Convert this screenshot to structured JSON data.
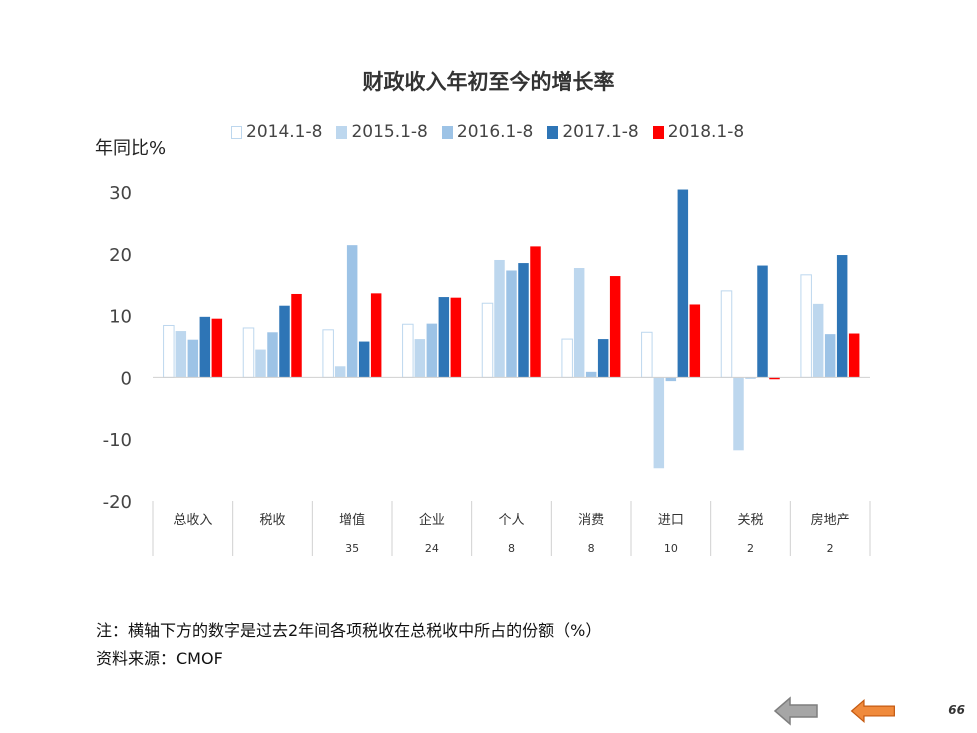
{
  "chart_data": {
    "type": "bar",
    "title": "财政收入年初至今的增长率",
    "ylabel": "年同比%",
    "ylim": [
      -20,
      30
    ],
    "yticks": [
      30,
      20,
      10,
      0,
      -10,
      -20
    ],
    "categories": [
      "总收入",
      "税收",
      "增值",
      "企业",
      "个人",
      "消费",
      "进口",
      "关税",
      "房地产"
    ],
    "shares": [
      "",
      "",
      "35",
      "24",
      "8",
      "8",
      "10",
      "2",
      "2"
    ],
    "legend_position": "top",
    "grid": false,
    "series": [
      {
        "name": "2014.1-8",
        "color": "#ffffff",
        "stroke": "#bdd7ee",
        "values": [
          8.4,
          8.0,
          7.7,
          8.6,
          12.0,
          6.2,
          7.3,
          14.0,
          16.6
        ]
      },
      {
        "name": "2015.1-8",
        "color": "#bdd7ee",
        "values": [
          7.5,
          4.5,
          1.8,
          6.2,
          19.0,
          17.7,
          -14.7,
          -11.8,
          11.9
        ]
      },
      {
        "name": "2016.1-8",
        "color": "#9dc3e6",
        "values": [
          6.1,
          7.3,
          21.4,
          8.7,
          17.3,
          0.9,
          -0.6,
          -0.2,
          7.0
        ]
      },
      {
        "name": "2017.1-8",
        "color": "#2e75b6",
        "values": [
          9.8,
          11.6,
          5.8,
          13.0,
          18.5,
          6.2,
          30.4,
          18.1,
          19.8
        ]
      },
      {
        "name": "2018.1-8",
        "color": "#ff0000",
        "values": [
          9.5,
          13.5,
          13.6,
          12.9,
          21.2,
          16.4,
          11.8,
          -0.3,
          7.1
        ]
      }
    ]
  },
  "notes": {
    "line1": "注：横轴下方的数字是过去2年间各项税收在总税收中所占的份额（%）",
    "line2": "资料来源：CMOF"
  },
  "nav": {
    "prev_icon": "left-arrow-gray",
    "next_icon": "left-arrow-orange",
    "page_number": "66"
  }
}
